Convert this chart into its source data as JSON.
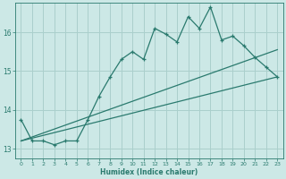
{
  "xlabel": "Humidex (Indice chaleur)",
  "bg_color": "#cce8e6",
  "grid_color": "#aacfcc",
  "line_color": "#2a7a6e",
  "xlim": [
    -0.5,
    23.5
  ],
  "ylim": [
    12.75,
    16.75
  ],
  "yticks": [
    13,
    14,
    15,
    16
  ],
  "xticks": [
    0,
    1,
    2,
    3,
    4,
    5,
    6,
    7,
    8,
    9,
    10,
    11,
    12,
    13,
    14,
    15,
    16,
    17,
    18,
    19,
    20,
    21,
    22,
    23
  ],
  "line1_x": [
    0,
    1,
    2,
    3,
    4,
    5,
    6,
    7,
    8,
    9,
    10,
    11,
    12,
    13,
    14,
    15,
    16,
    17,
    18,
    19,
    20,
    21,
    22,
    23
  ],
  "line1_y": [
    13.75,
    13.2,
    13.2,
    13.1,
    13.2,
    13.2,
    13.75,
    14.35,
    14.85,
    15.3,
    15.5,
    15.3,
    16.1,
    15.95,
    15.75,
    16.4,
    16.1,
    16.65,
    15.8,
    15.9,
    15.65,
    15.35,
    15.1,
    14.85
  ],
  "line2_x": [
    0,
    23
  ],
  "line2_y": [
    13.2,
    14.85
  ],
  "line3_x": [
    0,
    23
  ],
  "line3_y": [
    13.2,
    15.55
  ]
}
